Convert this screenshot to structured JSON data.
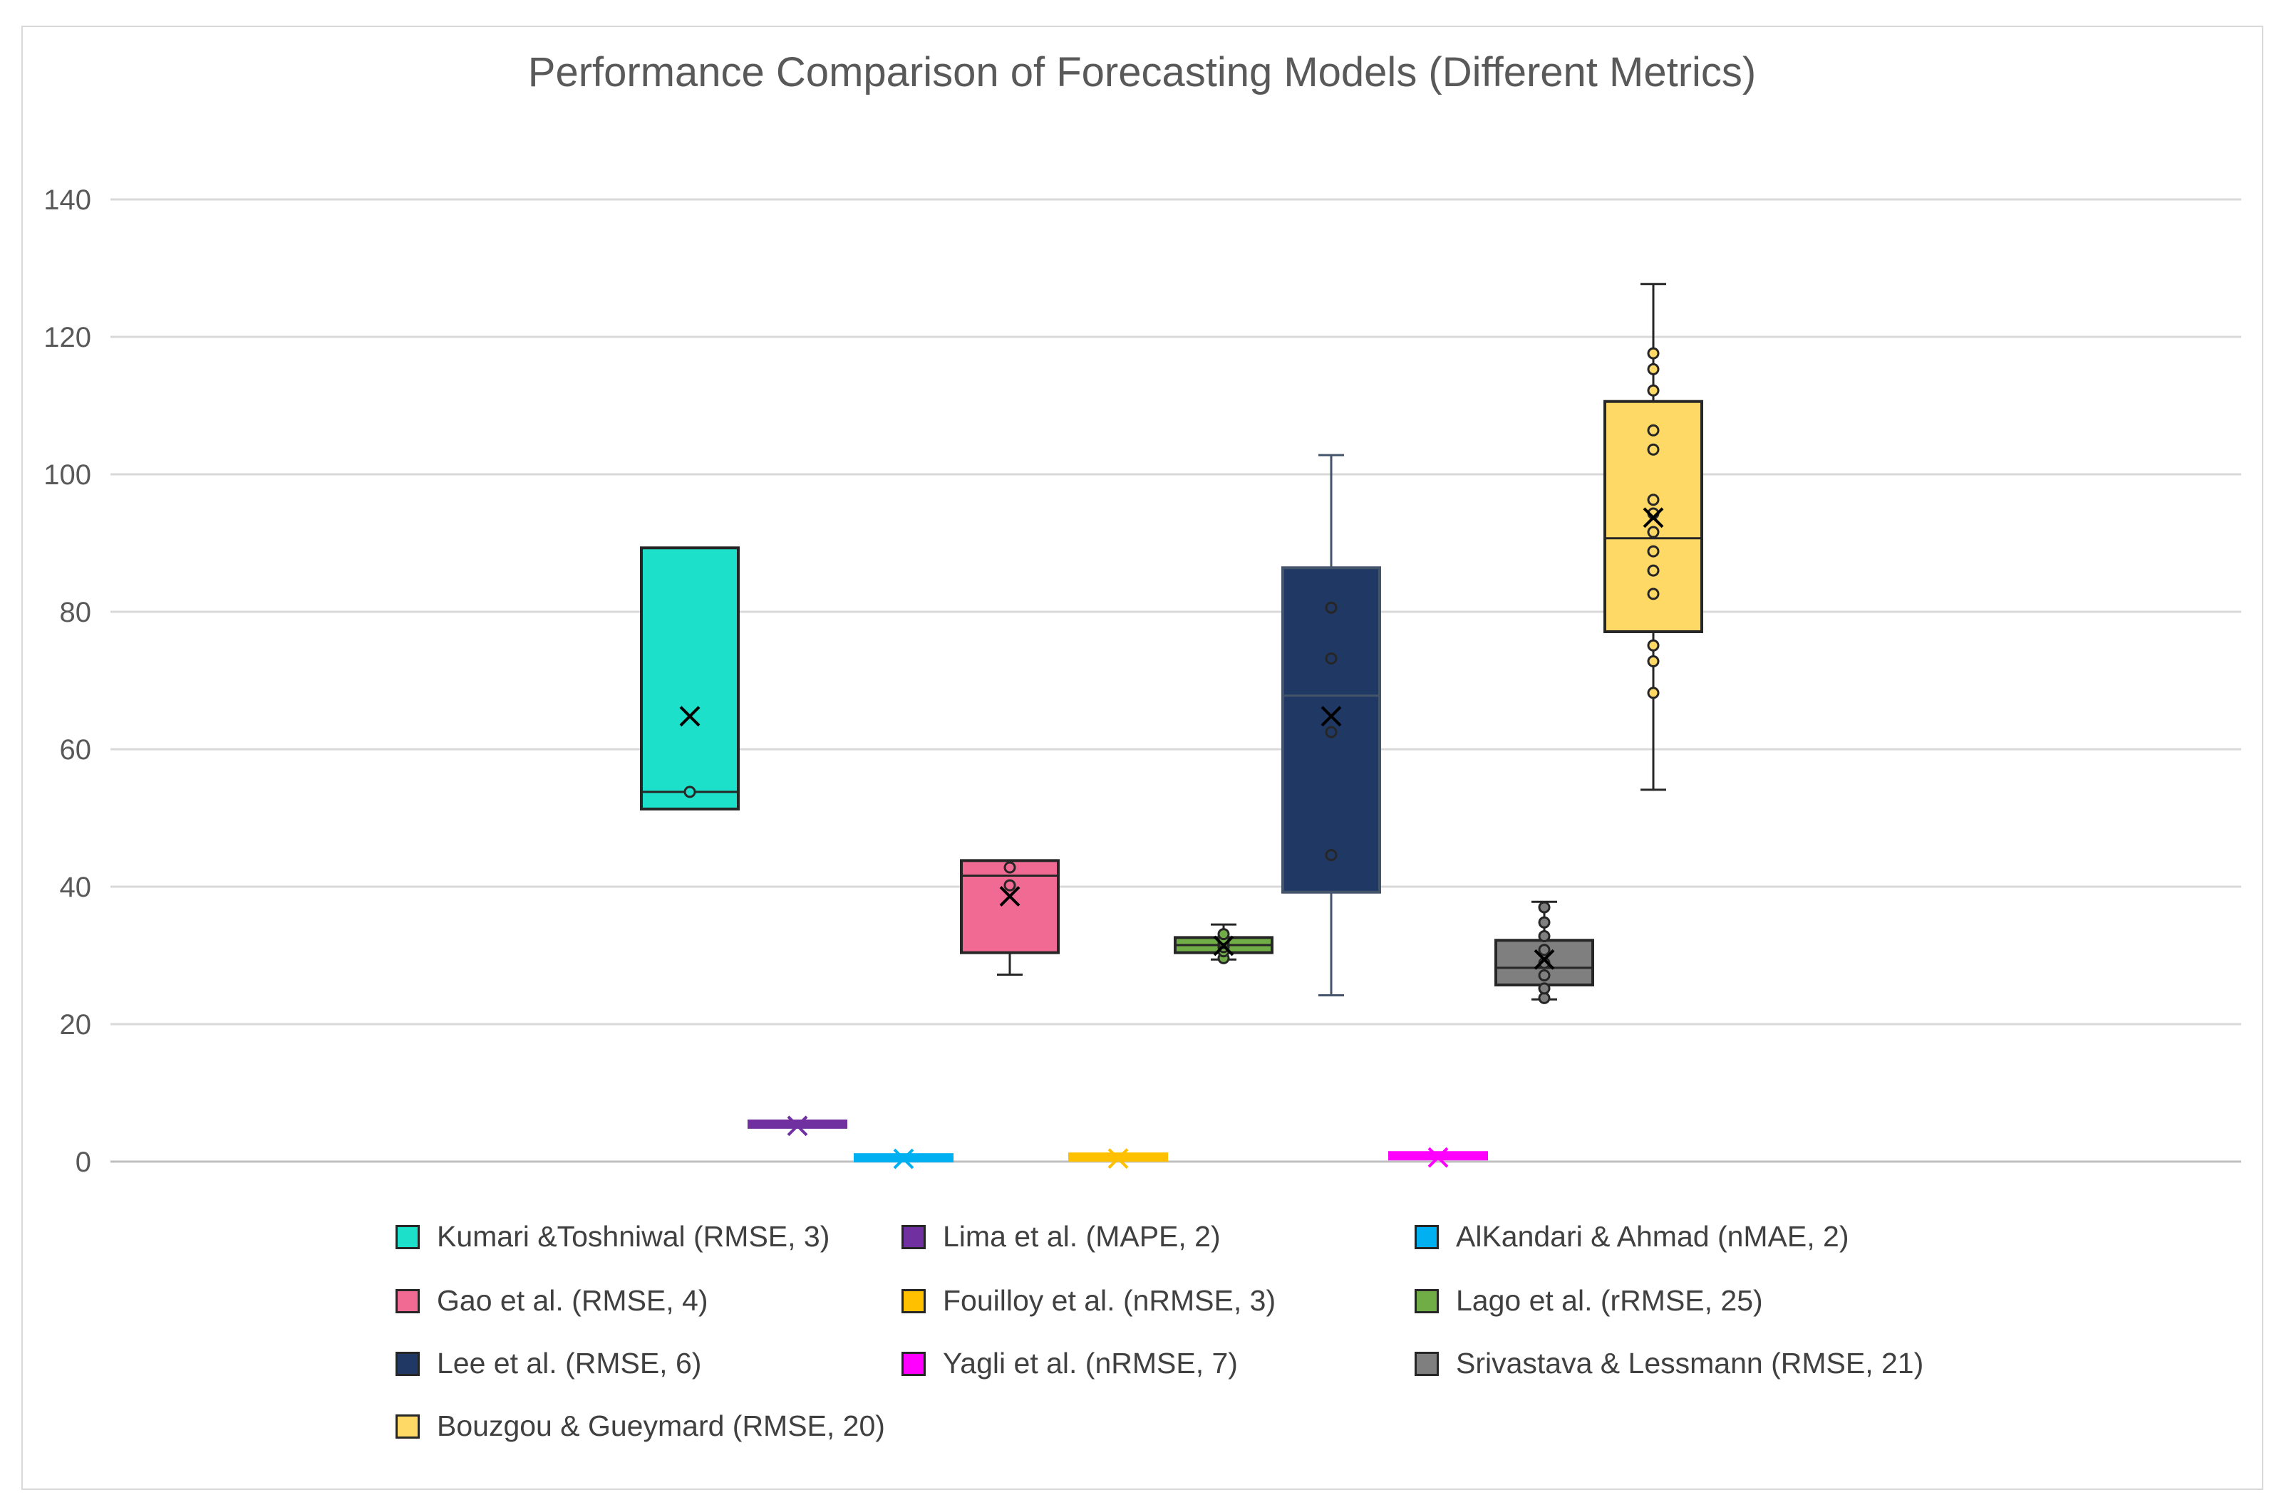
{
  "chart_data": {
    "type": "box",
    "title": "Performance Comparison of Forecasting Models (Different Metrics)",
    "xlabel": "",
    "ylabel": "",
    "ylim": [
      0,
      140
    ],
    "yticks": [
      0,
      20,
      40,
      60,
      80,
      100,
      120,
      140
    ],
    "grid": true,
    "legend_position": "bottom",
    "series": [
      {
        "name": "Kumari &Toshniwal (RMSE, 3)",
        "color": "#1de0cb",
        "stroke": "#262626",
        "min": 51.3,
        "q1": 51.3,
        "median": 53.8,
        "q3": 89.3,
        "max": 89.3,
        "mean": 64.8,
        "points": [
          53.8
        ]
      },
      {
        "name": "Lima et al. (MAPE, 2)",
        "color": "#7030a0",
        "stroke": "#7030a0",
        "min": 5.0,
        "q1": 5.0,
        "median": 5.2,
        "q3": 5.4,
        "max": 5.4,
        "mean": 5.2,
        "points": []
      },
      {
        "name": "AlKandari & Ahmad (nMAE, 2)",
        "color": "#00b0f0",
        "stroke": "#00b0f0",
        "min": 0.3,
        "q1": 0.3,
        "median": 0.4,
        "q3": 0.5,
        "max": 0.5,
        "mean": 0.4,
        "points": []
      },
      {
        "name": "Gao et al. (RMSE, 4)",
        "color": "#f06a94",
        "stroke": "#262626",
        "min": 27.2,
        "q1": 30.4,
        "median": 41.6,
        "q3": 43.8,
        "max": 43.8,
        "mean": 38.6,
        "points": [
          42.8,
          40.2
        ]
      },
      {
        "name": "Fouilloy et al. (nRMSE, 3)",
        "color": "#ffc000",
        "stroke": "#ffc000",
        "min": 0.3,
        "q1": 0.3,
        "median": 0.4,
        "q3": 0.6,
        "max": 0.6,
        "mean": 0.45,
        "points": []
      },
      {
        "name": "Lago et al. (rRMSE, 25)",
        "color": "#70ad47",
        "stroke": "#262626",
        "min": 29.4,
        "q1": 30.4,
        "median": 31.5,
        "q3": 32.6,
        "max": 34.5,
        "mean": 31.4,
        "points": [
          29.6,
          30.6,
          31.2,
          31.8,
          32.4,
          33.1
        ]
      },
      {
        "name": "Lee et al. (RMSE, 6)",
        "color": "#203864",
        "stroke": "#44546a",
        "min": 24.2,
        "q1": 39.2,
        "median": 67.8,
        "q3": 86.4,
        "max": 102.8,
        "mean": 64.8,
        "points": [
          80.6,
          73.2,
          62.5,
          44.6
        ]
      },
      {
        "name": "Yagli et al. (nRMSE, 7)",
        "color": "#ff00ff",
        "stroke": "#ff00ff",
        "min": 0.4,
        "q1": 0.4,
        "median": 0.6,
        "q3": 0.8,
        "max": 0.8,
        "mean": 0.6,
        "points": []
      },
      {
        "name": "Srivastava & Lessmann (RMSE, 21)",
        "color": "#7f7f7f",
        "stroke": "#262626",
        "min": 23.6,
        "q1": 25.7,
        "median": 28.2,
        "q3": 32.2,
        "max": 37.8,
        "mean": 29.4,
        "points": [
          23.8,
          25.2,
          27.1,
          28.9,
          30.8,
          32.8,
          34.8,
          37.0
        ]
      },
      {
        "name": "Bouzgou & Gueymard (RMSE, 20)",
        "color": "#ffd966",
        "stroke": "#262626",
        "min": 54.1,
        "q1": 77.1,
        "median": 90.7,
        "q3": 110.6,
        "max": 127.7,
        "mean": 93.7,
        "points": [
          68.2,
          72.8,
          75.1,
          82.6,
          86.0,
          88.8,
          91.6,
          94.3,
          96.3,
          103.6,
          106.4,
          112.2,
          115.3,
          117.6
        ]
      }
    ]
  }
}
